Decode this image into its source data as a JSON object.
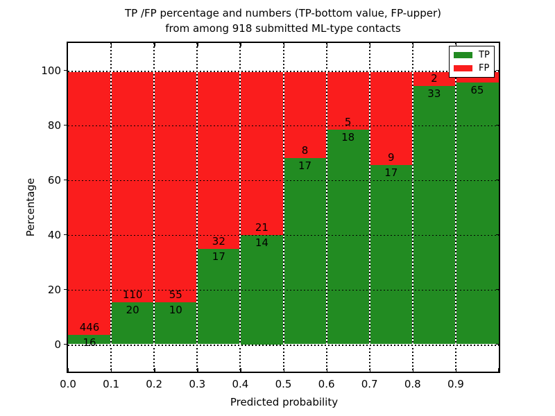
{
  "figure": {
    "title_line1": "TP /FP percentage and numbers (TP-bottom value, FP-upper)",
    "title_line2": "from among 918 submitted ML-type contacts",
    "xlabel": "Predicted probability",
    "ylabel": "Percentage"
  },
  "chart_data": {
    "type": "bar",
    "stacked": true,
    "percentage_scale": true,
    "title": "TP /FP percentage and numbers (TP-bottom value, FP-upper) from among 918 submitted ML-type contacts",
    "xlabel": "Predicted probability",
    "ylabel": "Percentage",
    "total_submitted": 918,
    "xlim": [
      0.0,
      1.0
    ],
    "ylim": [
      -10,
      110
    ],
    "bin_width": 0.1,
    "x_tick_labels": [
      "0.0",
      "0.1",
      "0.2",
      "0.3",
      "0.4",
      "0.5",
      "0.6",
      "0.7",
      "0.8",
      "0.9"
    ],
    "y_tick_values": [
      0,
      20,
      40,
      60,
      80,
      100
    ],
    "y_tick_labels": [
      "0",
      "20",
      "40",
      "60",
      "80",
      "100"
    ],
    "grid": "dotted",
    "colors": {
      "tp_green": "#228b22",
      "fp_red": "#fa1d1d"
    },
    "legend": {
      "position": "upper right",
      "items": [
        {
          "label": "TP",
          "color": "#228b22"
        },
        {
          "label": "FP",
          "color": "#fa1d1d"
        }
      ]
    },
    "bars": [
      {
        "bin_start": 0.0,
        "bin_end": 0.1,
        "tp": 16,
        "fp": 446,
        "tp_pct": 3.46,
        "fp_label": "446",
        "tp_label": "16"
      },
      {
        "bin_start": 0.1,
        "bin_end": 0.2,
        "tp": 20,
        "fp": 110,
        "tp_pct": 15.38,
        "fp_label": "110",
        "tp_label": "20"
      },
      {
        "bin_start": 0.2,
        "bin_end": 0.3,
        "tp": 10,
        "fp": 55,
        "tp_pct": 15.38,
        "fp_label": "55",
        "tp_label": "10"
      },
      {
        "bin_start": 0.3,
        "bin_end": 0.4,
        "tp": 17,
        "fp": 32,
        "tp_pct": 34.69,
        "fp_label": "32",
        "tp_label": "17"
      },
      {
        "bin_start": 0.4,
        "bin_end": 0.5,
        "tp": 14,
        "fp": 21,
        "tp_pct": 40.0,
        "fp_label": "21",
        "tp_label": "14"
      },
      {
        "bin_start": 0.5,
        "bin_end": 0.6,
        "tp": 17,
        "fp": 8,
        "tp_pct": 68.0,
        "fp_label": "8",
        "tp_label": "17"
      },
      {
        "bin_start": 0.6,
        "bin_end": 0.7,
        "tp": 18,
        "fp": 5,
        "tp_pct": 78.26,
        "fp_label": "5",
        "tp_label": "18"
      },
      {
        "bin_start": 0.7,
        "bin_end": 0.8,
        "tp": 17,
        "fp": 9,
        "tp_pct": 65.38,
        "fp_label": "9",
        "tp_label": "17"
      },
      {
        "bin_start": 0.8,
        "bin_end": 0.9,
        "tp": 33,
        "fp": 2,
        "tp_pct": 94.29,
        "fp_label": "2",
        "tp_label": "33"
      },
      {
        "bin_start": 0.9,
        "bin_end": 1.0,
        "tp": 65,
        "fp": 3,
        "tp_pct": 95.59,
        "fp_label": "",
        "tp_label": "65",
        "fp_label_hidden_by_legend": true
      }
    ]
  }
}
